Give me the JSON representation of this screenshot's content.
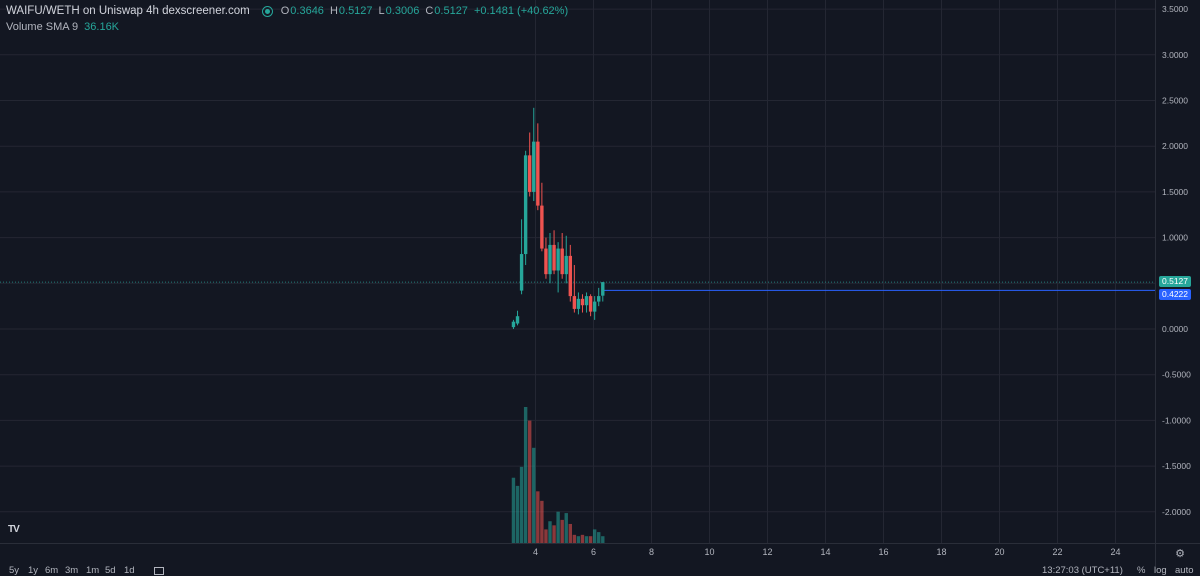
{
  "legend": {
    "symbol_line": "WAIFU/WETH on Uniswap  4h  dexscreener.com",
    "o_label": "O",
    "o_value": "0.3646",
    "h_label": "H",
    "h_value": "0.5127",
    "l_label": "L",
    "l_value": "0.3006",
    "c_label": "C",
    "c_value": "0.5127",
    "change": "+0.1481 (+40.62%)",
    "volume_name": "Volume SMA 9",
    "volume_value": "36.16K"
  },
  "price_tags": {
    "last_price": "0.5127",
    "line_price": "0.4222"
  },
  "colors": {
    "background": "#131722",
    "up": "#26a69a",
    "down": "#ef5350",
    "grid": "#242733",
    "line": "#2962ff",
    "text": "#b2b5be"
  },
  "timeframes": [
    "5y",
    "1y",
    "6m",
    "3m",
    "1m",
    "5d",
    "1d"
  ],
  "status": {
    "time": "13:27:03 (UTC+11)",
    "percent": "%",
    "log": "log",
    "auto": "auto"
  },
  "chart_data": {
    "type": "candlestick",
    "y_axis": {
      "ylim": [
        -2.25,
        3.5
      ],
      "ticks": [
        "3.5000",
        "3.0000",
        "2.5000",
        "2.0000",
        "1.5000",
        "1.0000",
        "0.5000",
        "0.0000",
        "-0.5000",
        "-1.0000",
        "-1.5000",
        "-2.0000"
      ],
      "tick_values": [
        3.5,
        3.0,
        2.5,
        2.0,
        1.5,
        1.0,
        0.5,
        0.0,
        -0.5,
        -1.0,
        -1.5,
        -2.0
      ]
    },
    "x_axis": {
      "xlim": [
        -14.4,
        26.1
      ],
      "ticks": [
        "4",
        "6",
        "8",
        "10",
        "12",
        "14",
        "16",
        "18",
        "20",
        "22",
        "24"
      ],
      "tick_values": [
        4,
        6,
        8,
        10,
        12,
        14,
        16,
        18,
        20,
        22,
        24
      ]
    },
    "grid": true,
    "candles": [
      {
        "t": 3.24,
        "o": 0.02,
        "h": 0.1,
        "l": 0.0,
        "c": 0.08
      },
      {
        "t": 3.38,
        "o": 0.06,
        "h": 0.2,
        "l": 0.04,
        "c": 0.14
      },
      {
        "t": 3.52,
        "o": 0.42,
        "h": 1.2,
        "l": 0.38,
        "c": 0.82
      },
      {
        "t": 3.66,
        "o": 0.82,
        "h": 1.95,
        "l": 0.7,
        "c": 1.9
      },
      {
        "t": 3.8,
        "o": 1.9,
        "h": 2.15,
        "l": 1.45,
        "c": 1.5
      },
      {
        "t": 3.94,
        "o": 1.5,
        "h": 2.42,
        "l": 1.4,
        "c": 2.05
      },
      {
        "t": 4.08,
        "o": 2.05,
        "h": 2.25,
        "l": 1.3,
        "c": 1.35
      },
      {
        "t": 4.22,
        "o": 1.35,
        "h": 1.6,
        "l": 0.85,
        "c": 0.88
      },
      {
        "t": 4.36,
        "o": 0.88,
        "h": 1.0,
        "l": 0.55,
        "c": 0.6
      },
      {
        "t": 4.5,
        "o": 0.6,
        "h": 1.05,
        "l": 0.5,
        "c": 0.92
      },
      {
        "t": 4.64,
        "o": 0.92,
        "h": 1.08,
        "l": 0.6,
        "c": 0.64
      },
      {
        "t": 4.78,
        "o": 0.64,
        "h": 0.95,
        "l": 0.4,
        "c": 0.88
      },
      {
        "t": 4.92,
        "o": 0.88,
        "h": 1.05,
        "l": 0.55,
        "c": 0.6
      },
      {
        "t": 5.06,
        "o": 0.6,
        "h": 1.02,
        "l": 0.5,
        "c": 0.8
      },
      {
        "t": 5.2,
        "o": 0.8,
        "h": 0.92,
        "l": 0.3,
        "c": 0.36
      },
      {
        "t": 5.34,
        "o": 0.36,
        "h": 0.7,
        "l": 0.18,
        "c": 0.22
      },
      {
        "t": 5.48,
        "o": 0.22,
        "h": 0.4,
        "l": 0.16,
        "c": 0.33
      },
      {
        "t": 5.62,
        "o": 0.33,
        "h": 0.38,
        "l": 0.18,
        "c": 0.26
      },
      {
        "t": 5.76,
        "o": 0.26,
        "h": 0.4,
        "l": 0.18,
        "c": 0.36
      },
      {
        "t": 5.9,
        "o": 0.36,
        "h": 0.38,
        "l": 0.14,
        "c": 0.19
      },
      {
        "t": 6.04,
        "o": 0.19,
        "h": 0.36,
        "l": 0.1,
        "c": 0.3
      },
      {
        "t": 6.18,
        "o": 0.3,
        "h": 0.45,
        "l": 0.25,
        "c": 0.36
      },
      {
        "t": 6.32,
        "o": 0.3646,
        "h": 0.5127,
        "l": 0.3006,
        "c": 0.5127
      }
    ],
    "volume": [
      0.48,
      0.42,
      0.56,
      1.0,
      0.9,
      0.7,
      0.38,
      0.31,
      0.1,
      0.16,
      0.13,
      0.23,
      0.17,
      0.22,
      0.14,
      0.06,
      0.05,
      0.06,
      0.05,
      0.05,
      0.1,
      0.08,
      0.05
    ],
    "volume_max_label": "",
    "horizontal_line": {
      "price": 0.4222,
      "from_t": 6.32
    },
    "last_price_line": 0.5127
  }
}
